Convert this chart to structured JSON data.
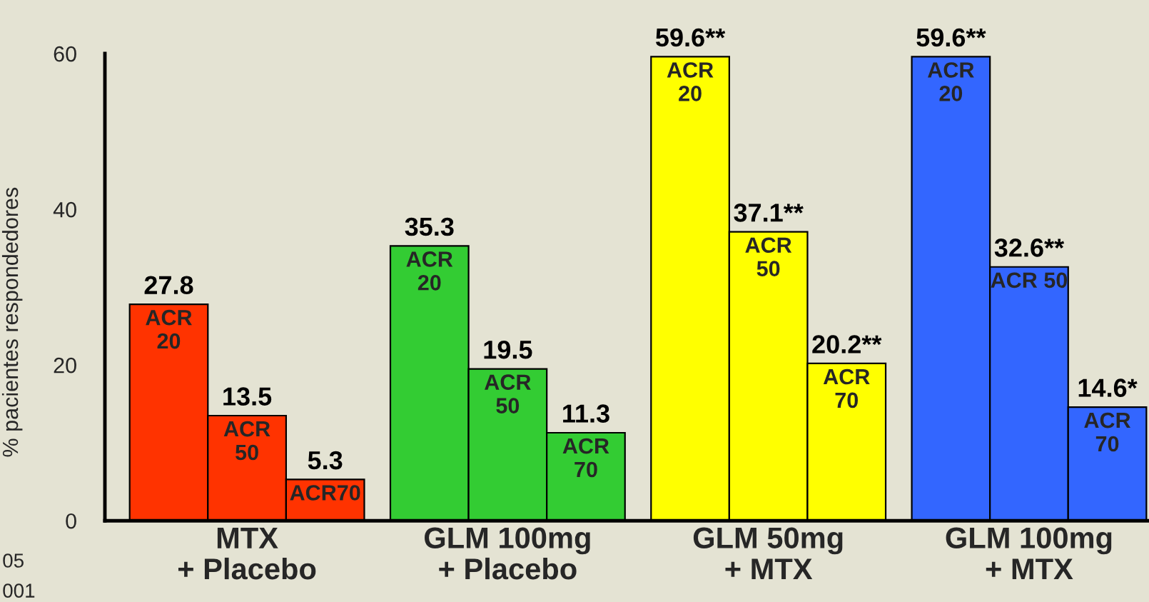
{
  "chart_data": {
    "type": "bar",
    "ylabel": "% pacientes respondedores",
    "categories": [
      "MTX\n+ Placebo",
      "GLM 100mg\n+ Placebo",
      "GLM 50mg\n+ MTX",
      "GLM 100mg\n+ MTX"
    ],
    "series": [
      {
        "colors": [
          "#ff3300",
          "#33cc33",
          "#ffff00",
          "#3366ff"
        ],
        "values": [
          27.8,
          35.3,
          59.6,
          59.6
        ],
        "value_labels": [
          "27.8",
          "35.3",
          "59.6**",
          "59.6**"
        ]
      },
      {
        "colors": [
          "#ff3300",
          "#33cc33",
          "#ffff00",
          "#3366ff"
        ],
        "values": [
          13.5,
          19.5,
          37.1,
          32.6
        ],
        "value_labels": [
          "13.5",
          "19.5",
          "37.1**",
          "32.6**"
        ]
      },
      {
        "colors": [
          "#ff3300",
          "#33cc33",
          "#ffff00",
          "#3366ff"
        ],
        "values": [
          5.3,
          11.3,
          20.2,
          14.6
        ],
        "value_labels": [
          "5.3",
          "11.3",
          "20.2**",
          "14.6*"
        ]
      }
    ],
    "ylim": [
      0,
      60
    ],
    "yticks": [
      0,
      20,
      40,
      60
    ],
    "grid": false,
    "annotations": [
      "ACR\n20",
      "ACR\n50",
      "ACR70",
      "ACR\n20",
      "ACR\n50",
      "ACR\n70",
      "ACR\n20",
      "ACR\n50",
      "ACR\n70",
      "ACR\n20",
      "ACR 50",
      "ACR\n70",
      "05",
      "001"
    ]
  }
}
